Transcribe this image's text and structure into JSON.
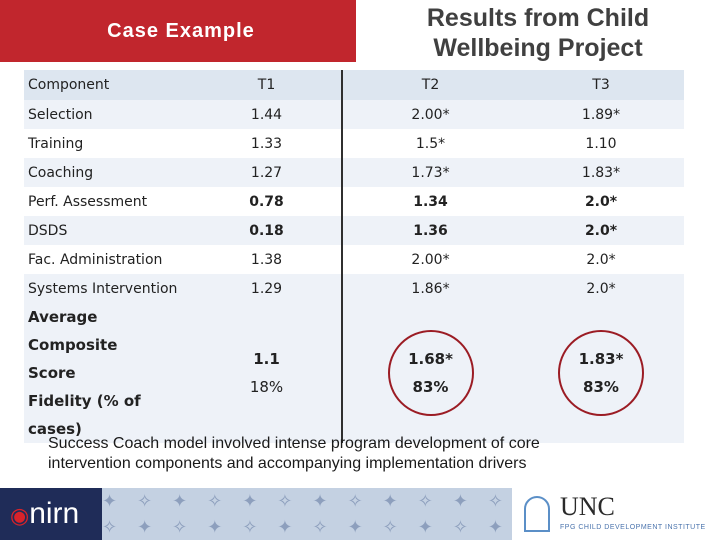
{
  "header": {
    "case_label": "Case Example",
    "result_line1": "Results from Child",
    "result_line2": "Wellbeing Project"
  },
  "table": {
    "columns": [
      "Component",
      "T1",
      "T2",
      "T3"
    ],
    "rows": [
      {
        "component": "Selection",
        "t1": "1.44",
        "t2": "2.00*",
        "t3": "1.89*"
      },
      {
        "component": "Training",
        "t1": "1.33",
        "t2": "1.5*",
        "t3": "1.10"
      },
      {
        "component": "Coaching",
        "t1": "1.27",
        "t2": "1.73*",
        "t3": "1.83*"
      },
      {
        "component": "Perf. Assessment",
        "t1": "0.78",
        "t2": "1.34",
        "t3": "2.0*"
      },
      {
        "component": "DSDS",
        "t1": "0.18",
        "t2": "1.36",
        "t3": "2.0*"
      },
      {
        "component": "Fac. Administration",
        "t1": "1.38",
        "t2": "2.00*",
        "t3": "2.0*"
      },
      {
        "component": "Systems Intervention",
        "t1": "1.29",
        "t2": "1.86*",
        "t3": "2.0*"
      }
    ],
    "average": {
      "label_line1": "Average Composite",
      "label_line2": "Score",
      "label_line3": "Fidelity (% of",
      "label_line4": "cases)",
      "t1_score": "1.1",
      "t1_pct": "18%",
      "t2_score": "1.68*",
      "t2_pct": "83%",
      "t3_score": "1.83*",
      "t3_pct": "83%"
    }
  },
  "summary": {
    "line1": "Success Coach model involved intense program development of core",
    "line2": "intervention components and accompanying implementation drivers"
  },
  "footer": {
    "nirn_logo": "nirn",
    "unc_name": "UNC",
    "unc_sub": "FPG CHILD DEVELOPMENT INSTITUTE"
  },
  "colors": {
    "accent_red": "#c1262d",
    "table_stripe": "#eef2f8",
    "header_fill": "#dde6f0",
    "footer_navy": "#1f2c58",
    "circle_red": "#9b1c24"
  }
}
